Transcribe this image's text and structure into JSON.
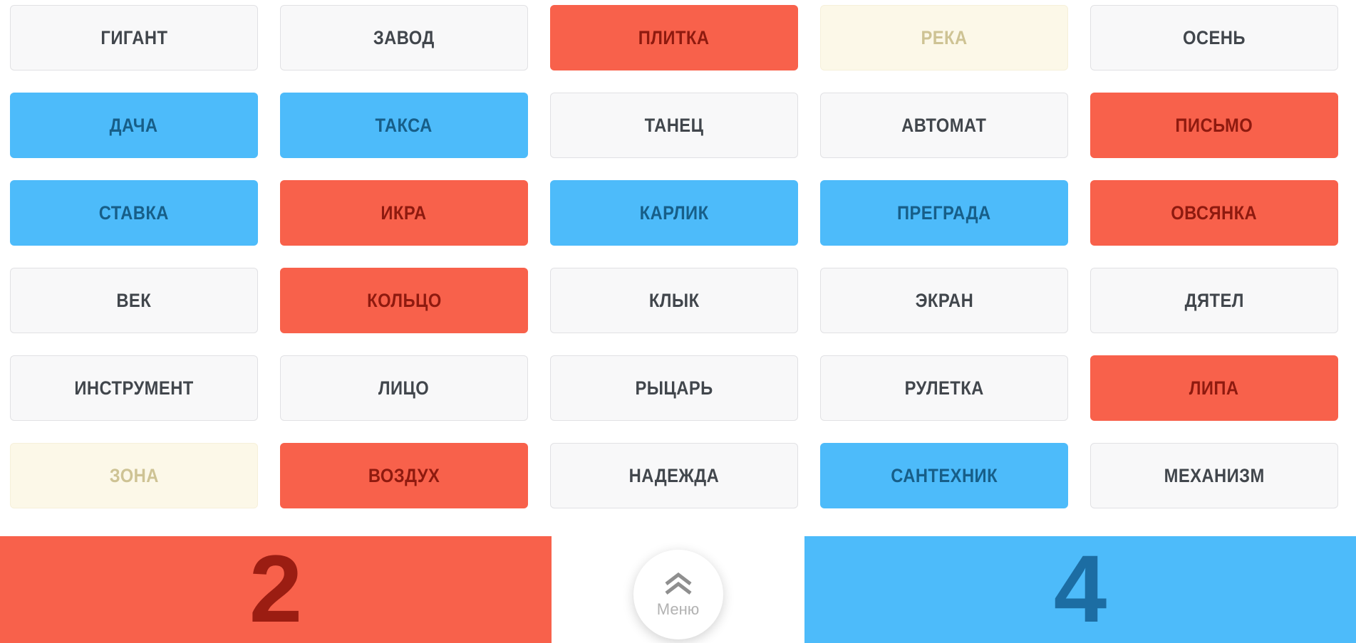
{
  "board": {
    "cards": [
      {
        "word": "ГИГАНТ",
        "state": "hidden"
      },
      {
        "word": "ЗАВОД",
        "state": "hidden"
      },
      {
        "word": "ПЛИТКА",
        "state": "red"
      },
      {
        "word": "РЕКА",
        "state": "civilian"
      },
      {
        "word": "ОСЕНЬ",
        "state": "hidden"
      },
      {
        "word": "ДАЧА",
        "state": "blue"
      },
      {
        "word": "ТАКСА",
        "state": "blue"
      },
      {
        "word": "ТАНЕЦ",
        "state": "hidden"
      },
      {
        "word": "АВТОМАТ",
        "state": "hidden"
      },
      {
        "word": "ПИСЬМО",
        "state": "red"
      },
      {
        "word": "СТАВКА",
        "state": "blue"
      },
      {
        "word": "ИКРА",
        "state": "red"
      },
      {
        "word": "КАРЛИК",
        "state": "blue"
      },
      {
        "word": "ПРЕГРАДА",
        "state": "blue"
      },
      {
        "word": "ОВСЯНКА",
        "state": "red"
      },
      {
        "word": "ВЕК",
        "state": "hidden"
      },
      {
        "word": "КОЛЬЦО",
        "state": "red"
      },
      {
        "word": "КЛЫК",
        "state": "hidden"
      },
      {
        "word": "ЭКРАН",
        "state": "hidden"
      },
      {
        "word": "ДЯТЕЛ",
        "state": "hidden"
      },
      {
        "word": "ИНСТРУМЕНТ",
        "state": "hidden"
      },
      {
        "word": "ЛИЦО",
        "state": "hidden"
      },
      {
        "word": "РЫЦАРЬ",
        "state": "hidden"
      },
      {
        "word": "РУЛЕТКА",
        "state": "hidden"
      },
      {
        "word": "ЛИПА",
        "state": "red"
      },
      {
        "word": "ЗОНА",
        "state": "civilian"
      },
      {
        "word": "ВОЗДУХ",
        "state": "red"
      },
      {
        "word": "НАДЕЖДА",
        "state": "hidden"
      },
      {
        "word": "САНТЕХНИК",
        "state": "blue"
      },
      {
        "word": "МЕХАНИЗМ",
        "state": "hidden"
      }
    ]
  },
  "footer": {
    "red_remaining": "2",
    "blue_remaining": "4",
    "menu": {
      "label": "Меню",
      "icon": "double-chevron-up-icon"
    }
  },
  "colors": {
    "red": "#f8614b",
    "red_text": "#8e1a0f",
    "blue": "#4dbbfa",
    "blue_text": "#175e88",
    "civilian_bg": "#fcf8e8",
    "civilian_text": "#cec394",
    "hidden_bg": "#f8f8f9",
    "hidden_text": "#41464c"
  }
}
